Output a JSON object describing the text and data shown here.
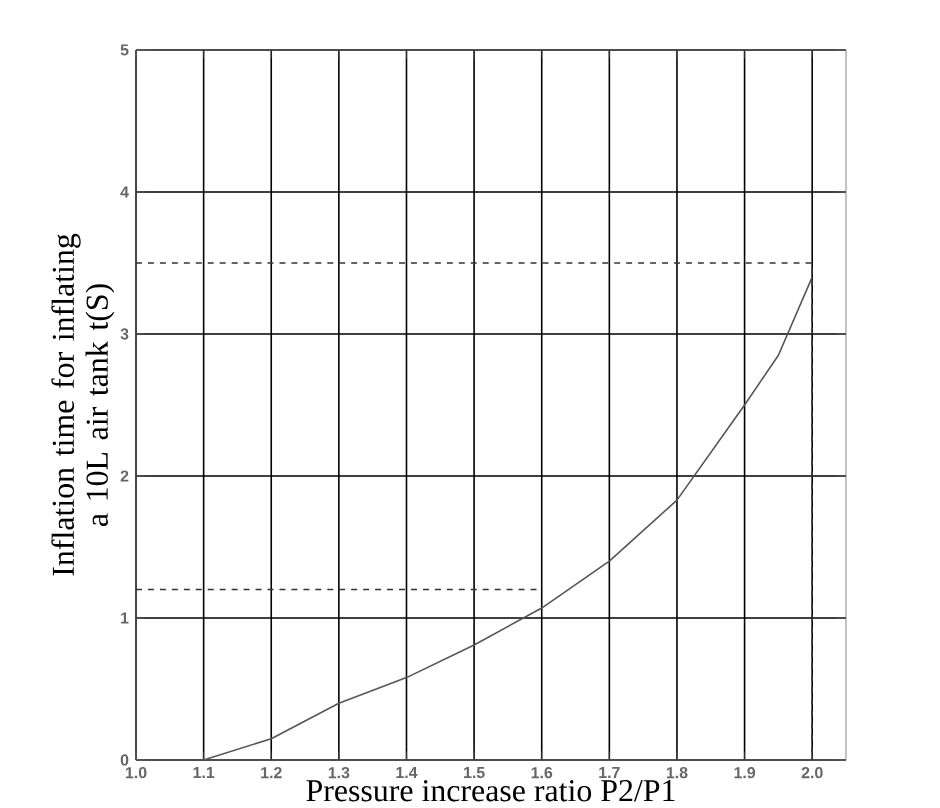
{
  "chart_data": {
    "type": "line",
    "xlabel": "Pressure increase ratio      P2/P1",
    "ylabel": "Inflation time for inflating a 10L air tank    t(S)",
    "series": [
      {
        "color": "#555555",
        "x": [
          1.1,
          1.2,
          1.3,
          1.4,
          1.5,
          1.6,
          1.7,
          1.8,
          1.9,
          1.95,
          2.0
        ],
        "values": [
          0,
          0.15,
          0.4,
          0.58,
          0.81,
          1.07,
          1.4,
          1.83,
          2.5,
          2.85,
          3.4
        ]
      },
      {
        "color": "#333333",
        "line_style": "dashed",
        "x": [
          1.0,
          1.6
        ],
        "values": [
          1.2,
          1.2
        ]
      },
      {
        "color": "#333333",
        "line_style": "dashed",
        "x": [
          1.0,
          2.0,
          2.0
        ],
        "values": [
          3.5,
          3.5,
          0
        ]
      }
    ],
    "xlim": [
      1.0,
      2.05
    ],
    "ylim": [
      0,
      5
    ],
    "xticks": [
      {
        "value": 1.0,
        "label": "1.0"
      },
      1.1,
      1.2,
      1.3,
      1.4,
      1.5,
      1.6,
      1.7,
      1.8,
      1.9,
      {
        "value": 2.0,
        "label": "2.0"
      }
    ],
    "yticks": [
      0,
      1,
      2,
      3,
      4,
      5
    ],
    "grid": true,
    "marker": "none",
    "line_style": "solid"
  }
}
